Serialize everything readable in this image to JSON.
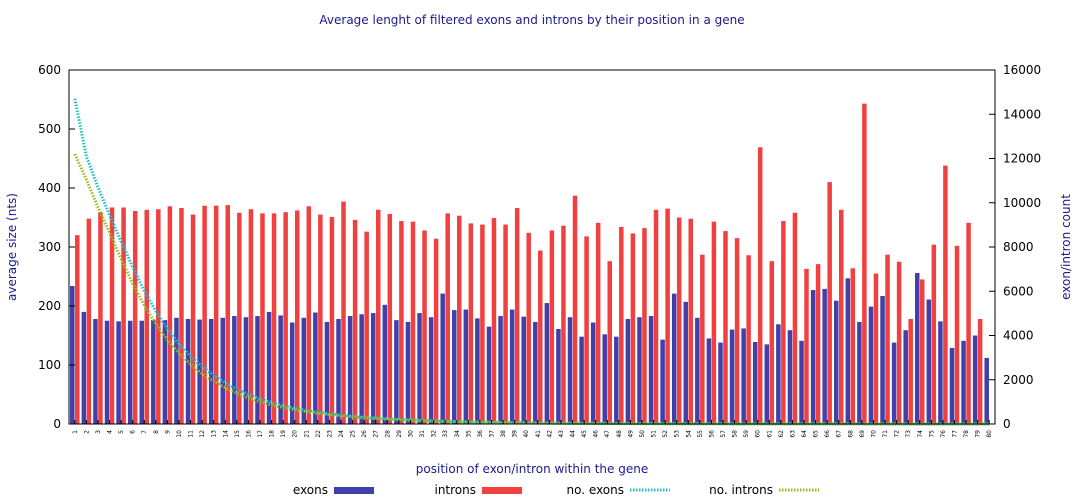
{
  "chart_data": {
    "type": "bar",
    "title": "Average lenght of filtered exons and introns by their position in a gene",
    "xlabel": "position of exon/intron within the gene",
    "ylabel": "average size (nts)",
    "y2label": "exon/intron count",
    "ylim": [
      0,
      600
    ],
    "y2lim": [
      0,
      16000
    ],
    "yticks": [
      "0",
      "100",
      "200",
      "300",
      "400",
      "500",
      "600"
    ],
    "y2ticks": [
      "0",
      "2000",
      "4000",
      "6000",
      "8000",
      "10000",
      "12000",
      "14000",
      "16000"
    ],
    "categories": [
      "1",
      "2",
      "3",
      "4",
      "5",
      "6",
      "7",
      "8",
      "9",
      "10",
      "11",
      "12",
      "13",
      "14",
      "15",
      "16",
      "17",
      "18",
      "19",
      "20",
      "21",
      "22",
      "23",
      "24",
      "25",
      "26",
      "27",
      "28",
      "29",
      "30",
      "31",
      "32",
      "33",
      "34",
      "35",
      "36",
      "37",
      "38",
      "39",
      "40",
      "41",
      "42",
      "43",
      "44",
      "45",
      "46",
      "47",
      "48",
      "49",
      "50",
      "51",
      "52",
      "53",
      "54",
      "55",
      "56",
      "57",
      "58",
      "59",
      "60",
      "61",
      "62",
      "63",
      "64",
      "65",
      "66",
      "67",
      "68",
      "69",
      "70",
      "71",
      "72",
      "73",
      "74",
      "75",
      "76",
      "77",
      "78",
      "79",
      "80"
    ],
    "series": [
      {
        "name": "exons",
        "kind": "bar",
        "axis": "left",
        "color": "#4040a8",
        "values": [
          234,
          190,
          178,
          175,
          174,
          175,
          175,
          176,
          176,
          180,
          178,
          177,
          178,
          180,
          183,
          181,
          183,
          190,
          184,
          172,
          180,
          189,
          173,
          178,
          183,
          186,
          188,
          202,
          176,
          173,
          188,
          181,
          221,
          193,
          194,
          179,
          165,
          183,
          194,
          182,
          173,
          205,
          161,
          181,
          148,
          172,
          152,
          148,
          178,
          181,
          183,
          143,
          221,
          207,
          180,
          145,
          138,
          160,
          162,
          139,
          135,
          169,
          159,
          141,
          227,
          229,
          209,
          247,
          173,
          199,
          217,
          138,
          159,
          256,
          211,
          174,
          129,
          141,
          150,
          112
        ]
      },
      {
        "name": "introns",
        "kind": "bar",
        "axis": "left",
        "color": "#f04040",
        "values": [
          320,
          348,
          359,
          367,
          367,
          361,
          363,
          364,
          369,
          366,
          355,
          370,
          370,
          371,
          358,
          364,
          357,
          357,
          359,
          362,
          369,
          355,
          351,
          377,
          346,
          326,
          363,
          356,
          344,
          343,
          328,
          314,
          357,
          353,
          340,
          338,
          349,
          338,
          366,
          324,
          294,
          328,
          336,
          387,
          318,
          341,
          276,
          334,
          323,
          332,
          363,
          365,
          350,
          348,
          287,
          343,
          327,
          315,
          286,
          469,
          276,
          344,
          358,
          263,
          271,
          410,
          363,
          264,
          543,
          255,
          287,
          275,
          178,
          245,
          304,
          438,
          302,
          341,
          178,
          0
        ]
      },
      {
        "name": "no. exons",
        "kind": "line",
        "axis": "right",
        "color": "#20c0c8",
        "values": [
          14700,
          12100,
          10700,
          9450,
          8250,
          7100,
          6020,
          5100,
          4300,
          3620,
          3060,
          2600,
          2200,
          1860,
          1580,
          1340,
          1140,
          970,
          830,
          715,
          620,
          540,
          470,
          410,
          360,
          315,
          275,
          240,
          210,
          185,
          162,
          142,
          125,
          110,
          97,
          86,
          76,
          67,
          60,
          53,
          47,
          42,
          38,
          34,
          30,
          27,
          24,
          22,
          20,
          18,
          16,
          14,
          13,
          12,
          11,
          10,
          9,
          8,
          7,
          7,
          6,
          6,
          5,
          5,
          4,
          4,
          4,
          3,
          3,
          3,
          3,
          2,
          2,
          2,
          2,
          2,
          2,
          1,
          1,
          1
        ]
      },
      {
        "name": "no. introns",
        "kind": "line",
        "axis": "right",
        "color": "#90c020",
        "values": [
          12200,
          11050,
          9800,
          8650,
          7450,
          6350,
          5370,
          4520,
          3800,
          3200,
          2700,
          2280,
          1930,
          1640,
          1390,
          1180,
          1000,
          860,
          740,
          640,
          555,
          480,
          420,
          365,
          320,
          280,
          245,
          215,
          190,
          168,
          148,
          130,
          115,
          102,
          90,
          80,
          70,
          62,
          55,
          49,
          44,
          39,
          35,
          31,
          28,
          25,
          22,
          20,
          18,
          16,
          14,
          13,
          12,
          11,
          10,
          9,
          8,
          7,
          6,
          6,
          5,
          5,
          4,
          4,
          4,
          3,
          3,
          3,
          3,
          2,
          2,
          2,
          2,
          2,
          2,
          1,
          1,
          1,
          1,
          1
        ]
      }
    ],
    "legend_position": "bottom",
    "grid": false
  }
}
